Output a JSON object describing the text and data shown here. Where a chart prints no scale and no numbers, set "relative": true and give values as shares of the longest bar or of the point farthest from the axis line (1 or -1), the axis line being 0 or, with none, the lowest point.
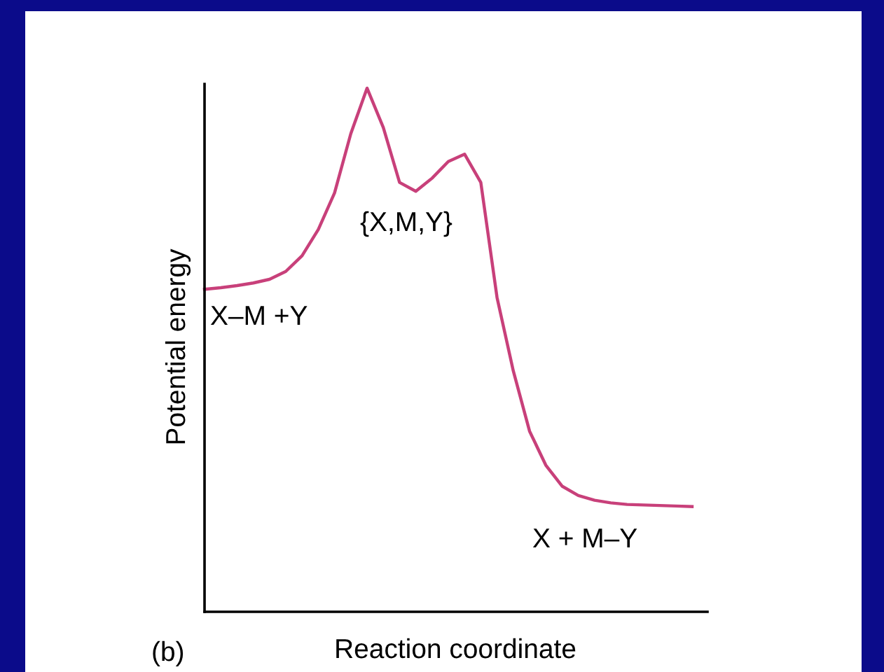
{
  "chart_data": {
    "type": "line",
    "relative": true,
    "xlabel": "Reaction coordinate",
    "ylabel": "Potential energy",
    "categories": [
      null,
      null,
      null,
      null,
      null,
      null,
      null,
      null,
      null,
      null,
      null,
      null,
      null,
      null,
      null,
      null,
      null,
      null,
      null,
      null,
      null,
      null,
      null,
      null,
      null,
      null,
      null,
      null,
      null,
      null,
      null
    ],
    "series": [
      {
        "color": "#c8407a",
        "values": [
          0.616,
          0.619,
          0.623,
          0.628,
          0.635,
          0.65,
          0.68,
          0.73,
          0.8,
          0.913,
          1.0,
          0.925,
          0.82,
          0.803,
          0.828,
          0.86,
          0.874,
          0.82,
          0.6,
          0.46,
          0.345,
          0.28,
          0.24,
          0.222,
          0.213,
          0.208,
          0.205,
          0.204,
          0.203,
          0.202,
          0.201
        ]
      }
    ],
    "annotations": [
      "{X,M,Y}",
      "X–M +Y",
      "X + M–Y",
      "(b)"
    ],
    "marker": "none",
    "line_style": "solid",
    "grid": false,
    "legend": false
  }
}
